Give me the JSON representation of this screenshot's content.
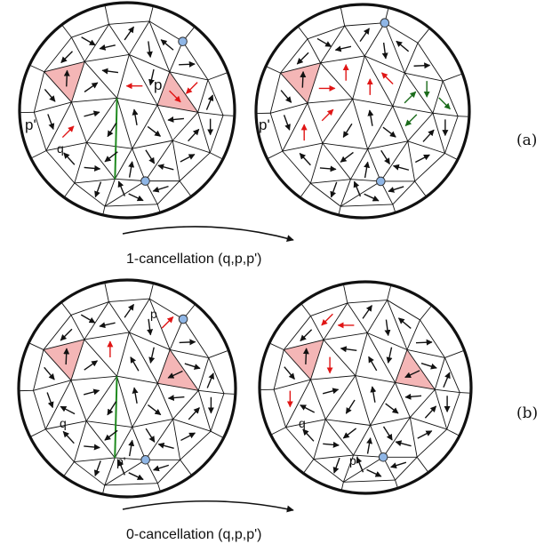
{
  "row_a": {
    "caption": "1-cancellation (q,p,p')",
    "tag": "(a)",
    "before": {
      "label_q": "q",
      "label_p": "p",
      "label_p_prime": "p'"
    },
    "after": {
      "label_p_prime": "p'"
    }
  },
  "row_b": {
    "caption": "0-cancellation (q,p,p')",
    "tag": "(b)",
    "before": {
      "label_q": "q",
      "label_p": "p",
      "label_p_prime": "p'"
    },
    "after": {
      "label_q": "q",
      "label_p_prime": "p'"
    }
  },
  "colors": {
    "edge": "#111111",
    "triangle_fill": "#f4b6b6",
    "critical_point": "#8fb6e6",
    "arrow_default": "#111111",
    "arrow_changed": "#e01515",
    "arrow_green": "#1a6b1a",
    "separatrix": "#1f8a1f"
  }
}
